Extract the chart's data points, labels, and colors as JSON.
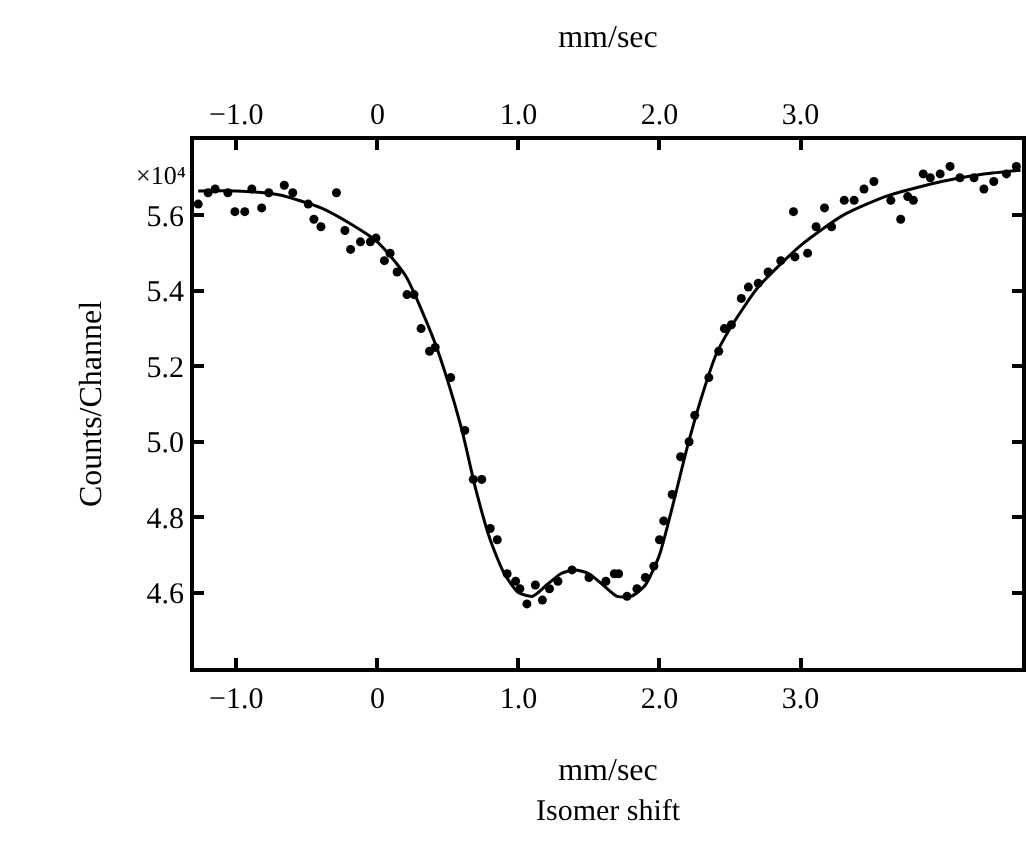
{
  "chart_data": {
    "type": "scatter",
    "xlabel": "mm/sec",
    "x2label": "mm/sec",
    "ylabel": "Counts/Channel",
    "annotations": [
      "×10⁴",
      "Isomer shift"
    ],
    "xlim": [
      -1.3,
      4.57
    ],
    "ylim": [
      4.4,
      5.8
    ],
    "xticks": [
      {
        "value": -1,
        "label": "−1.0"
      },
      0,
      {
        "value": 1,
        "label": "1.0"
      },
      {
        "value": 2,
        "label": "2.0"
      },
      {
        "value": 3,
        "label": "3.0"
      }
    ],
    "x2lim": [
      -1.3,
      4.57
    ],
    "x2ticks": [
      {
        "value": -1,
        "label": "−1.0"
      },
      0,
      {
        "value": 1,
        "label": "1.0"
      },
      {
        "value": 2,
        "label": "2.0"
      },
      {
        "value": 3,
        "label": "3.0"
      }
    ],
    "yticks": [
      4.6,
      4.8,
      {
        "value": 5,
        "label": "5.0"
      },
      5.2,
      5.4,
      5.6
    ],
    "series": [
      {
        "marker": "circle",
        "color": "#000000",
        "x": [
          -1.27,
          -1.2,
          -1.15,
          -1.06,
          -1.01,
          -0.94,
          -0.89,
          -0.82,
          -0.77,
          -0.66,
          -0.6,
          -0.49,
          -0.45,
          -0.4,
          -0.29,
          -0.23,
          -0.19,
          -0.12,
          -0.05,
          -0.01,
          0.05,
          0.09,
          0.14,
          0.21,
          0.26,
          0.31,
          0.37,
          0.41,
          0.52,
          0.62,
          0.68,
          0.74,
          0.8,
          0.85,
          0.92,
          0.98,
          1.01,
          1.06,
          1.12,
          1.17,
          1.22,
          1.28,
          1.38,
          1.5,
          1.62,
          1.68,
          1.71,
          1.77,
          1.84,
          1.9,
          1.96,
          2.0,
          2.03,
          2.09,
          2.15,
          2.21,
          2.25,
          2.35,
          2.42,
          2.46,
          2.51,
          2.58,
          2.63,
          2.7,
          2.77,
          2.86,
          2.95,
          2.96,
          3.05,
          3.11,
          3.17,
          3.22,
          3.31,
          3.38,
          3.45,
          3.52,
          3.64,
          3.71,
          3.76,
          3.8,
          3.87,
          3.92,
          3.99,
          4.06,
          4.13,
          4.23,
          4.3,
          4.37,
          4.46,
          4.53
        ],
        "values": [
          5.63,
          5.66,
          5.67,
          5.66,
          5.61,
          5.61,
          5.67,
          5.62,
          5.66,
          5.68,
          5.66,
          5.63,
          5.59,
          5.57,
          5.66,
          5.56,
          5.51,
          5.53,
          5.53,
          5.54,
          5.48,
          5.5,
          5.45,
          5.39,
          5.39,
          5.3,
          5.24,
          5.25,
          5.17,
          5.03,
          4.9,
          4.9,
          4.77,
          4.74,
          4.65,
          4.63,
          4.61,
          4.57,
          4.62,
          4.58,
          4.61,
          4.63,
          4.66,
          4.64,
          4.63,
          4.65,
          4.65,
          4.59,
          4.61,
          4.64,
          4.67,
          4.74,
          4.79,
          4.86,
          4.96,
          5.0,
          5.07,
          5.17,
          5.24,
          5.3,
          5.31,
          5.38,
          5.41,
          5.42,
          5.45,
          5.48,
          5.61,
          5.49,
          5.5,
          5.57,
          5.62,
          5.57,
          5.64,
          5.64,
          5.67,
          5.69,
          5.64,
          5.59,
          5.65,
          5.64,
          5.71,
          5.7,
          5.71,
          5.73,
          5.7,
          5.7,
          5.67,
          5.69,
          5.71,
          5.73
        ]
      },
      {
        "type": "line",
        "marker": "none",
        "line_style": "solid",
        "color": "#000000",
        "x": [
          -1.27,
          -1.0,
          -0.7,
          -0.4,
          -0.2,
          0,
          0.2,
          0.4,
          0.5,
          0.6,
          0.7,
          0.8,
          0.9,
          1.0,
          1.1,
          1.2,
          1.3,
          1.4,
          1.5,
          1.6,
          1.7,
          1.8,
          1.9,
          2.0,
          2.1,
          2.2,
          2.3,
          2.4,
          2.5,
          2.7,
          3.0,
          3.3,
          3.6,
          4.0,
          4.3,
          4.56
        ],
        "values": [
          5.665,
          5.665,
          5.655,
          5.62,
          5.58,
          5.53,
          5.44,
          5.27,
          5.16,
          5.03,
          4.87,
          4.74,
          4.65,
          4.6,
          4.59,
          4.62,
          4.65,
          4.66,
          4.65,
          4.62,
          4.59,
          4.59,
          4.62,
          4.7,
          4.84,
          4.99,
          5.12,
          5.23,
          5.3,
          5.41,
          5.52,
          5.6,
          5.65,
          5.69,
          5.71,
          5.72
        ]
      }
    ]
  }
}
